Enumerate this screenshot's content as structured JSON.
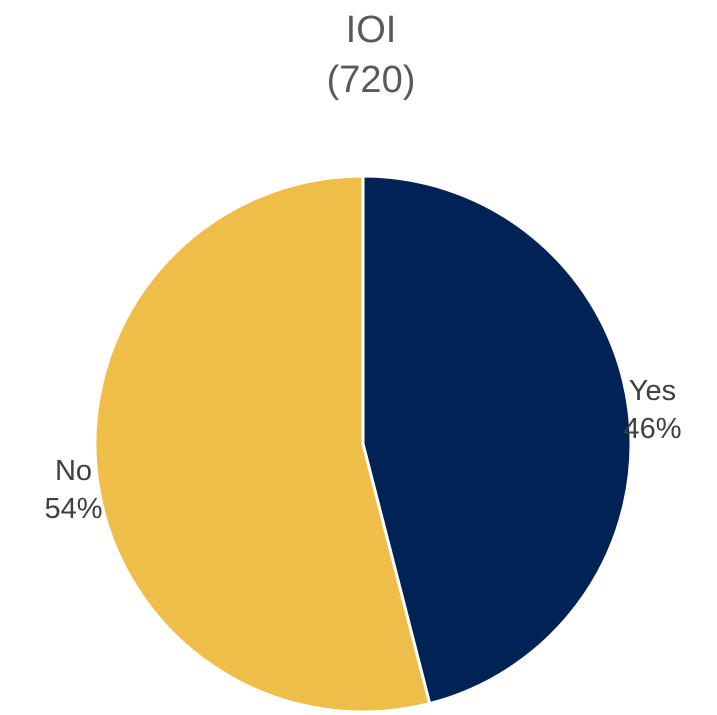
{
  "chart_data": {
    "type": "pie",
    "title": "IOI",
    "subtitle": "(720)",
    "slices": [
      {
        "label": "Yes",
        "value": 46,
        "value_label": "46%",
        "color": "#002255"
      },
      {
        "label": "No",
        "value": 54,
        "value_label": "54%",
        "color": "#EEBE48"
      }
    ],
    "start_angle": "12 o'clock",
    "direction": "clockwise",
    "legend": "none",
    "data_labels": "outside"
  }
}
